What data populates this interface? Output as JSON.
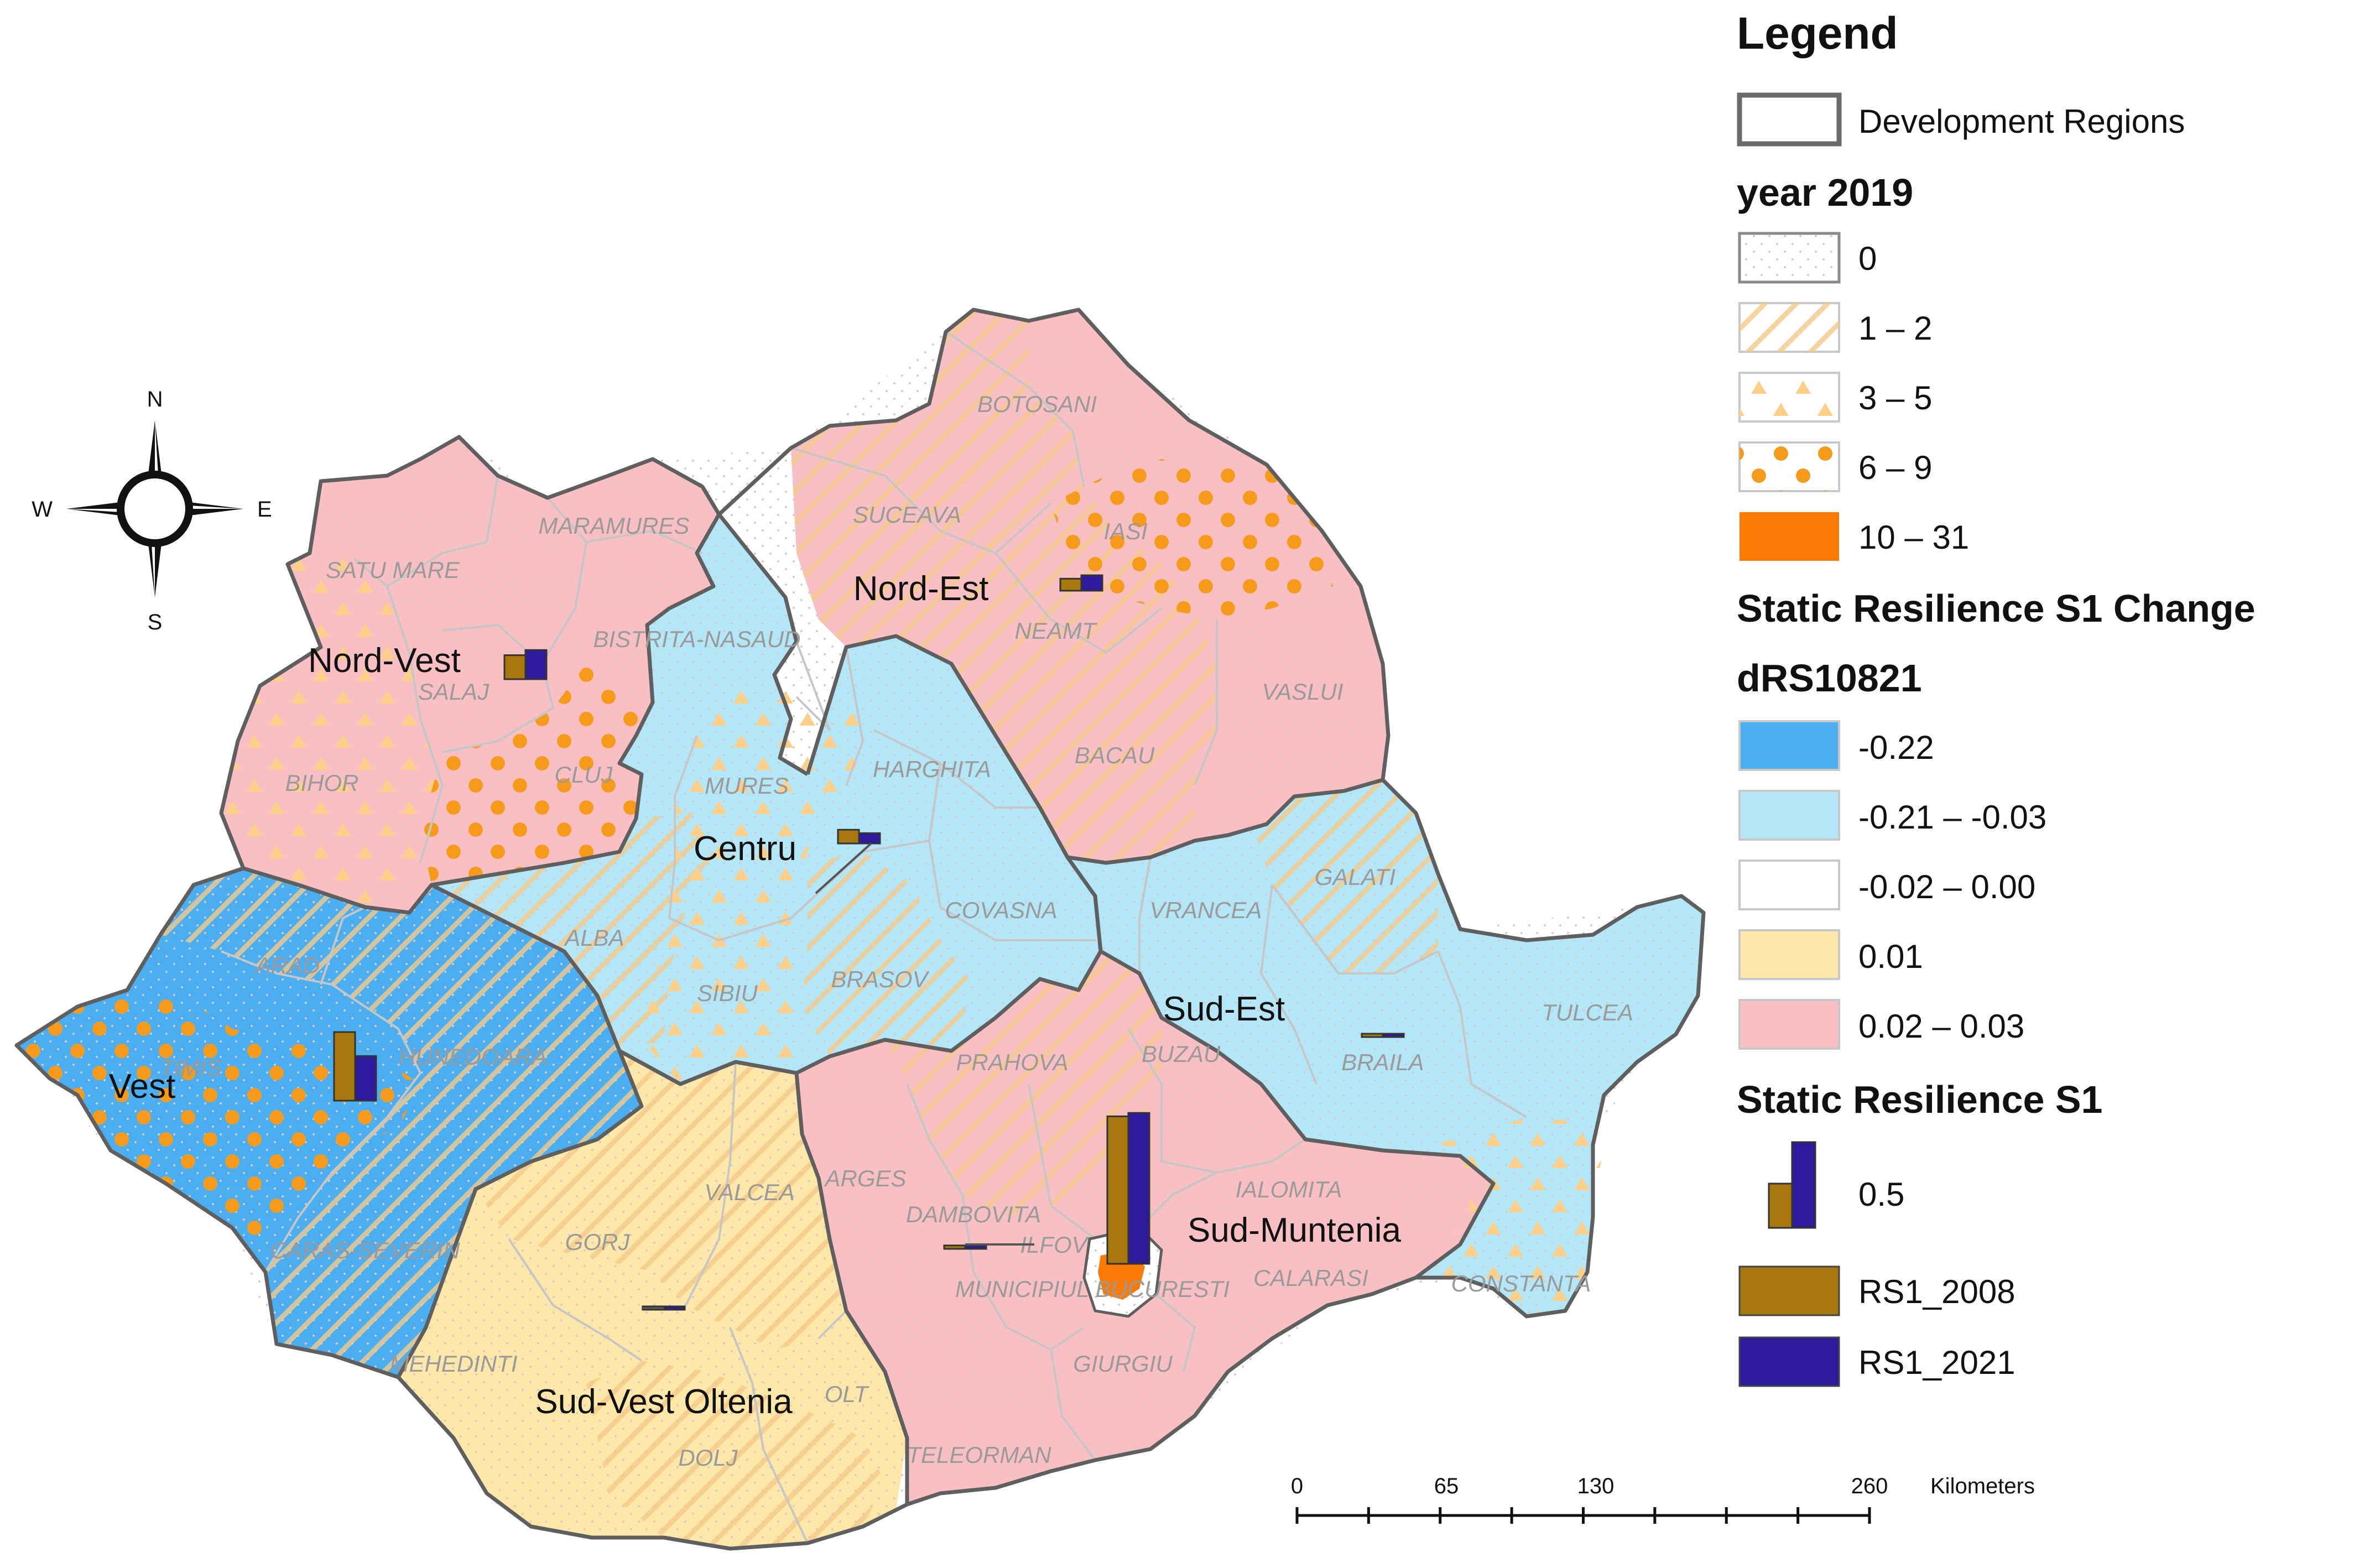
{
  "legend": {
    "title": "Legend",
    "boundary_label": "Development Regions",
    "year_title": "year 2019",
    "year_classes": [
      "0",
      "1 – 2",
      "3  –  5",
      "6  –  9",
      "10  –  31"
    ],
    "change_title": "Static Resilience S1 Change",
    "change_field": "dRS10821",
    "change_classes": [
      "-0.22",
      "-0.21  –  -0.03",
      "-0.02  –  0.00",
      "0.01",
      "0.02  –  0.03"
    ],
    "change_colors": [
      "#4aaef0",
      "#b3e6f7",
      "#ffffff",
      "#fde7a9",
      "#f9bfc2"
    ],
    "bars_title": "Static Resilience S1",
    "bars_value": "0.5",
    "series": [
      {
        "name": "RS1_2008",
        "color": "#a8780e"
      },
      {
        "name": "RS1_2021",
        "color": "#2e1a9c"
      }
    ]
  },
  "compass": {
    "n": "N",
    "s": "S",
    "e": "E",
    "w": "W"
  },
  "scale": {
    "ticks": [
      "0",
      "65",
      "130",
      "260"
    ],
    "unit": "Kilometers"
  },
  "regions": [
    "Nord-Vest",
    "Nord-Est",
    "Centru",
    "Vest",
    "Sud-Est",
    "Sud-Muntenia",
    "Sud-Vest Oltenia"
  ],
  "counties": [
    "BOTOSANI",
    "SUCEAVA",
    "MARAMURES",
    "SATU MARE",
    "IASI",
    "NEAMT",
    "BISTRITA-NASAUD",
    "SALAJ",
    "VASLUI",
    "BIHOR",
    "CLUJ",
    "HARGHITA",
    "MURES",
    "BACAU",
    "GALATI",
    "ARAD",
    "ALBA",
    "COVASNA",
    "VRANCEA",
    "HUNEDOARA",
    "SIBIU",
    "BRASOV",
    "TULCEA",
    "TIMIS",
    "BUZAU",
    "BRAILA",
    "PRAHOVA",
    "CARAS-SEVERIN",
    "VALCEA",
    "ARGES",
    "IALOMITA",
    "GORJ",
    "DAMBOVITA",
    "ILFOV",
    "CALARASI",
    "MUNICIPIUL BUCURESTI",
    "CONSTANTA",
    "MEHEDINTI",
    "OLT",
    "GIURGIU",
    "DOLJ",
    "TELEORMAN"
  ],
  "bar_values": [
    {
      "region": "Nord-Vest",
      "RS1_2008": 0.14,
      "RS1_2021": 0.17
    },
    {
      "region": "Nord-Est",
      "RS1_2008": 0.07,
      "RS1_2021": 0.09
    },
    {
      "region": "Centru",
      "RS1_2008": 0.08,
      "RS1_2021": 0.06
    },
    {
      "region": "Vest",
      "RS1_2008": 0.4,
      "RS1_2021": 0.26
    },
    {
      "region": "Sud-Est",
      "RS1_2008": 0.01,
      "RS1_2021": 0.01
    },
    {
      "region": "Sud-Muntenia",
      "RS1_2008": 0.02,
      "RS1_2021": 0.02
    },
    {
      "region": "Bucuresti-Ilfov",
      "RS1_2008": 0.86,
      "RS1_2021": 0.88
    },
    {
      "region": "Sud-Vest Oltenia",
      "RS1_2008": 0.01,
      "RS1_2021": 0.01
    }
  ]
}
